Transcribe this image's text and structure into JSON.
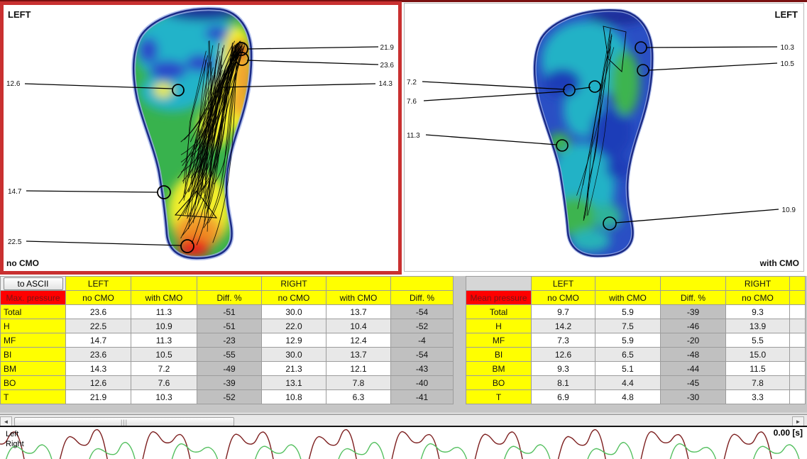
{
  "left_panel": {
    "corner_label": "LEFT",
    "condition": "no CMO",
    "callouts": {
      "toe_top": "21.9",
      "toe_lower": "23.6",
      "mid_right": "14.3",
      "mid_left": "12.6",
      "arch": "14.7",
      "heel": "22.5"
    }
  },
  "right_panel": {
    "corner_label": "LEFT",
    "condition": "with CMO",
    "callouts": {
      "toe_top": "10.3",
      "toe_lower": "10.5",
      "mid_a": "7.2",
      "mid_b": "7.6",
      "mid_c": "11.3",
      "heel": "10.9"
    }
  },
  "max_table": {
    "to_ascii": "to ASCII",
    "metric": "Max. pressure",
    "left": "LEFT",
    "right": "RIGHT",
    "cols": [
      "no CMO",
      "with CMO",
      "Diff. %",
      "no CMO",
      "with CMO",
      "Diff. %"
    ],
    "rows": [
      {
        "label": "Total",
        "v": [
          "23.6",
          "11.3",
          "-51",
          "30.0",
          "13.7",
          "-54"
        ]
      },
      {
        "label": "H",
        "v": [
          "22.5",
          "10.9",
          "-51",
          "22.0",
          "10.4",
          "-52"
        ]
      },
      {
        "label": "MF",
        "v": [
          "14.7",
          "11.3",
          "-23",
          "12.9",
          "12.4",
          "-4"
        ]
      },
      {
        "label": "BI",
        "v": [
          "23.6",
          "10.5",
          "-55",
          "30.0",
          "13.7",
          "-54"
        ]
      },
      {
        "label": "BM",
        "v": [
          "14.3",
          "7.2",
          "-49",
          "21.3",
          "12.1",
          "-43"
        ]
      },
      {
        "label": "BO",
        "v": [
          "12.6",
          "7.6",
          "-39",
          "13.1",
          "7.8",
          "-40"
        ]
      },
      {
        "label": "T",
        "v": [
          "21.9",
          "10.3",
          "-52",
          "10.8",
          "6.3",
          "-41"
        ]
      }
    ]
  },
  "mean_table": {
    "metric": "Mean pressure",
    "left": "LEFT",
    "right": "RIGHT",
    "cols": [
      "no CMO",
      "with CMO",
      "Diff. %",
      "no CMO"
    ],
    "rows": [
      {
        "label": "Total",
        "v": [
          "9.7",
          "5.9",
          "-39",
          "9.3"
        ]
      },
      {
        "label": "H",
        "v": [
          "14.2",
          "7.5",
          "-46",
          "13.9"
        ]
      },
      {
        "label": "MF",
        "v": [
          "7.3",
          "5.9",
          "-20",
          "5.5"
        ]
      },
      {
        "label": "BI",
        "v": [
          "12.6",
          "6.5",
          "-48",
          "15.0"
        ]
      },
      {
        "label": "BM",
        "v": [
          "9.3",
          "5.1",
          "-44",
          "11.5"
        ]
      },
      {
        "label": "BO",
        "v": [
          "8.1",
          "4.4",
          "-45",
          "7.8"
        ]
      },
      {
        "label": "T",
        "v": [
          "6.9",
          "4.8",
          "-30",
          "3.3"
        ]
      }
    ]
  },
  "waveform": {
    "legend_left": "Left",
    "legend_right": "Right",
    "time_label": "0.00 [s]",
    "left_color": "#7d1f1f",
    "right_color": "#55c060"
  },
  "colors": {
    "selection_border": "#c93030",
    "header_yellow": "#ffff00",
    "metric_red": "#ff0000",
    "diff_gray": "#c0c0c0"
  }
}
